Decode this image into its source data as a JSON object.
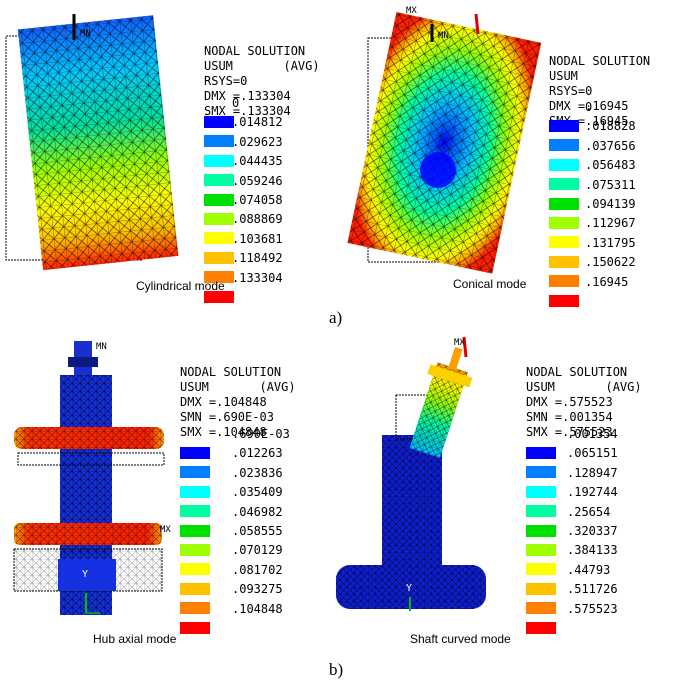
{
  "colors": [
    "#0000ff",
    "#0080ff",
    "#00ffff",
    "#00ffa0",
    "#00e000",
    "#a0ff00",
    "#ffff00",
    "#ffc000",
    "#ff7f00",
    "#ff0000"
  ],
  "panels": [
    {
      "id": "cyl",
      "caption": "Cylindrical mode",
      "header": [
        "NODAL SOLUTION",
        "USUM       (AVG)",
        "RSYS=0",
        "DMX =.133304",
        "SMX =.133304"
      ],
      "levels": [
        "0",
        ".014812",
        ".029623",
        ".044435",
        ".059246",
        ".074058",
        ".088869",
        ".103681",
        ".118492",
        ".133304"
      ],
      "tags": [
        "MN"
      ]
    },
    {
      "id": "con",
      "caption": "Conical mode",
      "header": [
        "NODAL SOLUTION",
        "USUM",
        "RSYS=0",
        "DMX =.16945",
        "SMX =.16945"
      ],
      "levels": [
        "0",
        ".018828",
        ".037656",
        ".056483",
        ".075311",
        ".094139",
        ".112967",
        ".131795",
        ".150622",
        ".16945"
      ],
      "tags": [
        "MX",
        "MN"
      ]
    },
    {
      "id": "hub",
      "caption": "Hub axial mode",
      "header": [
        "NODAL SOLUTION",
        "USUM       (AVG)",
        "DMX =.104848",
        "SMN =.690E-03",
        "SMX =.104848"
      ],
      "levels": [
        ".690E-03",
        ".012263",
        ".023836",
        ".035409",
        ".046982",
        ".058555",
        ".070129",
        ".081702",
        ".093275",
        ".104848"
      ],
      "tags": [
        "MN",
        "MX",
        "Y"
      ]
    },
    {
      "id": "shaft",
      "caption": "Shaft curved mode",
      "header": [
        "NODAL SOLUTION",
        "USUM       (AVG)",
        "DMX =.575523",
        "SMN =.001354",
        "SMX =.575523"
      ],
      "levels": [
        ".001354",
        ".065151",
        ".128947",
        ".192744",
        ".25654",
        ".320337",
        ".384133",
        ".44793",
        ".511726",
        ".575523"
      ],
      "tags": [
        "MX",
        "Y"
      ]
    }
  ],
  "subfig": {
    "a": "a)",
    "b": "b)"
  }
}
